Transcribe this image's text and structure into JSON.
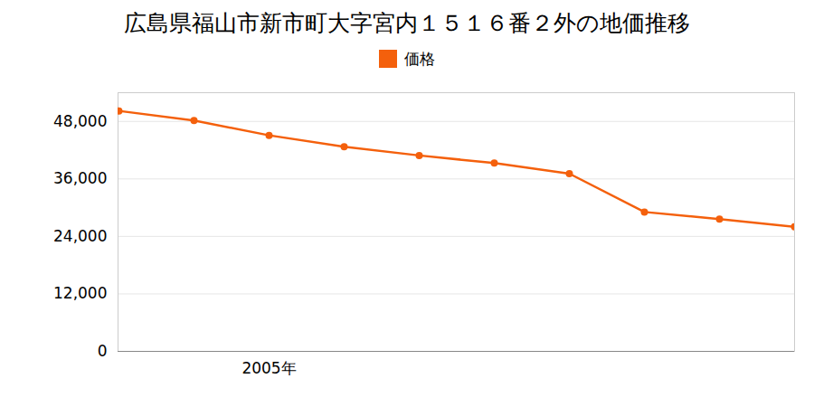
{
  "chart_data": {
    "type": "line",
    "title": "広島県福山市新市町大字宮内１５１６番２外の地価推移",
    "categories": [
      null,
      null,
      "2005年",
      null,
      null,
      null,
      null,
      null,
      null,
      null
    ],
    "series": [
      {
        "name": "価格",
        "color": "#f4600c",
        "marker": "circle",
        "values": [
          50200,
          48200,
          45100,
          42700,
          40900,
          39300,
          37100,
          29100,
          27600,
          26000
        ]
      }
    ],
    "ylim": [
      0,
      54000
    ],
    "yticks": [
      0,
      {
        "value": 12000,
        "label": "12,000"
      },
      {
        "value": 24000,
        "label": "24,000"
      },
      {
        "value": 36000,
        "label": "36,000"
      },
      {
        "value": 48000,
        "label": "48,000"
      }
    ],
    "grid": true,
    "legend": "top"
  }
}
